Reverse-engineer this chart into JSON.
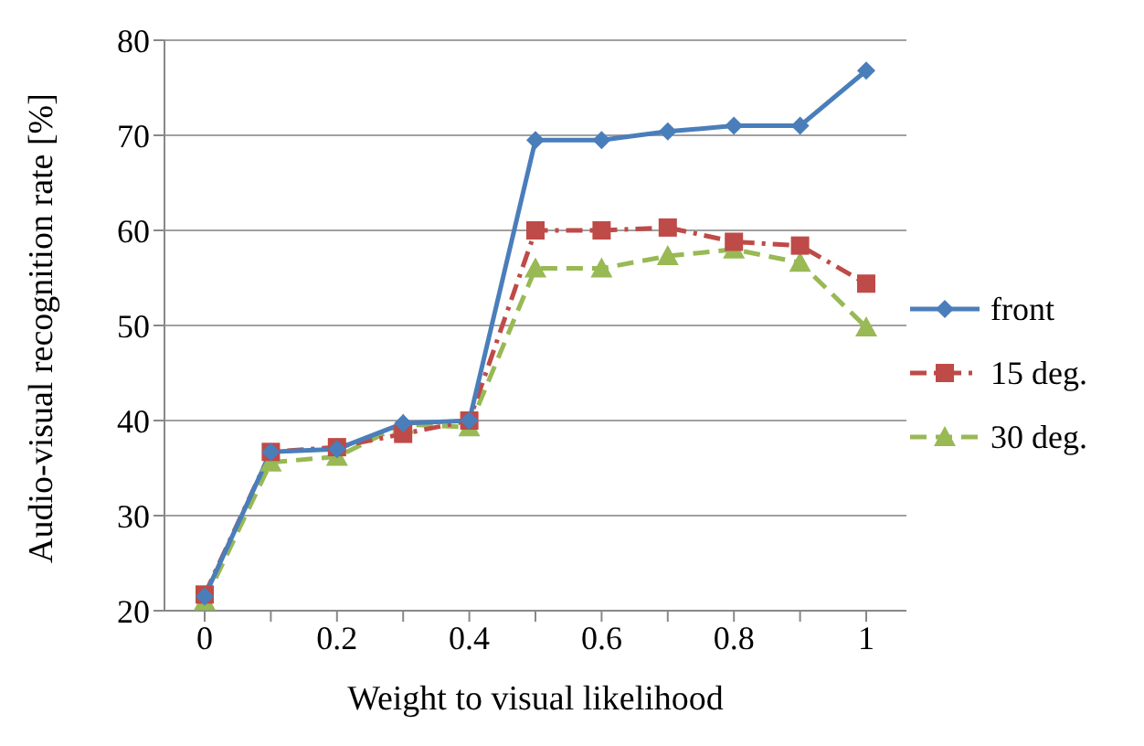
{
  "chart_data": {
    "type": "line",
    "xlabel": "Weight to visual likelihood",
    "ylabel": "Audio-visual recognition rate [%]",
    "categories": [
      "0",
      null,
      "0.2",
      null,
      "0.4",
      null,
      "0.6",
      null,
      "0.8",
      null,
      "1"
    ],
    "ylim": [
      20,
      80
    ],
    "yticks": [
      20,
      30,
      40,
      50,
      60,
      70,
      80
    ],
    "grid": "y",
    "legend": "right",
    "series": [
      {
        "name": "front",
        "color": "#4a7ebb",
        "marker": "diamond",
        "line_style": "solid",
        "values": [
          21.5,
          36.7,
          37,
          39.7,
          40,
          69.5,
          69.5,
          70.4,
          71,
          71,
          76.8
        ]
      },
      {
        "name": "15 deg.",
        "color": "#be4b48",
        "marker": "square",
        "line_style": "dashdot",
        "values": [
          21.7,
          36.7,
          37.2,
          38.6,
          40,
          60,
          60,
          60.3,
          58.8,
          58.4,
          54.4
        ]
      },
      {
        "name": "30 deg.",
        "color": "#98b954",
        "marker": "triangle",
        "line_style": "dashed",
        "values": [
          21,
          35.6,
          36.2,
          39.6,
          39.3,
          56,
          56,
          57.3,
          58,
          56.6,
          49.8
        ]
      }
    ]
  }
}
